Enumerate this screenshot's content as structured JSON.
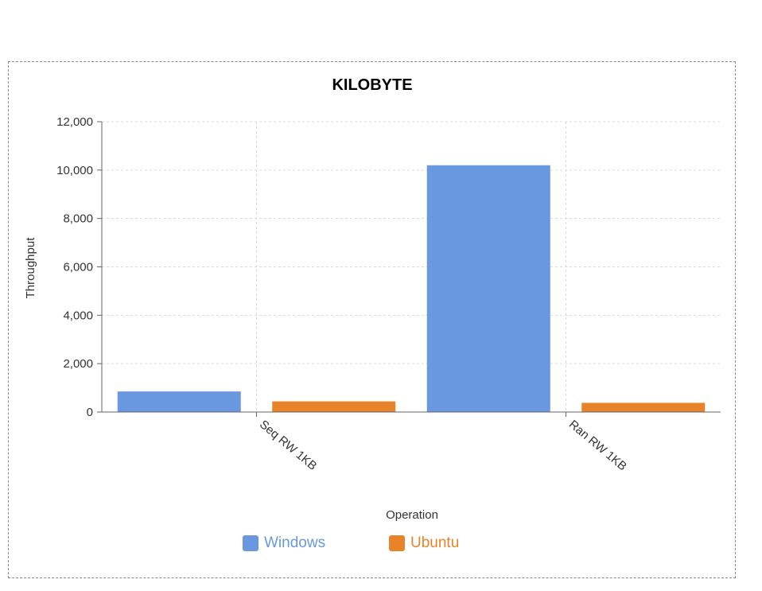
{
  "chart_data": {
    "type": "bar",
    "title": "KILOBYTE",
    "xlabel": "Operation",
    "ylabel": "Throughput",
    "categories": [
      "Seq RW 1KB",
      "Ran RW 1KB"
    ],
    "series": [
      {
        "name": "Windows",
        "color": "#6997e0",
        "values": [
          850,
          10200
        ]
      },
      {
        "name": "Ubuntu",
        "color": "#e8832a",
        "values": [
          440,
          380
        ]
      }
    ],
    "ylim": [
      0,
      12000
    ],
    "yticks": [
      0,
      2000,
      4000,
      6000,
      8000,
      10000,
      12000
    ],
    "ytick_labels": [
      "0",
      "2,000",
      "4,000",
      "6,000",
      "8,000",
      "10,000",
      "12,000"
    ],
    "grid": true,
    "legend_position": "bottom"
  }
}
